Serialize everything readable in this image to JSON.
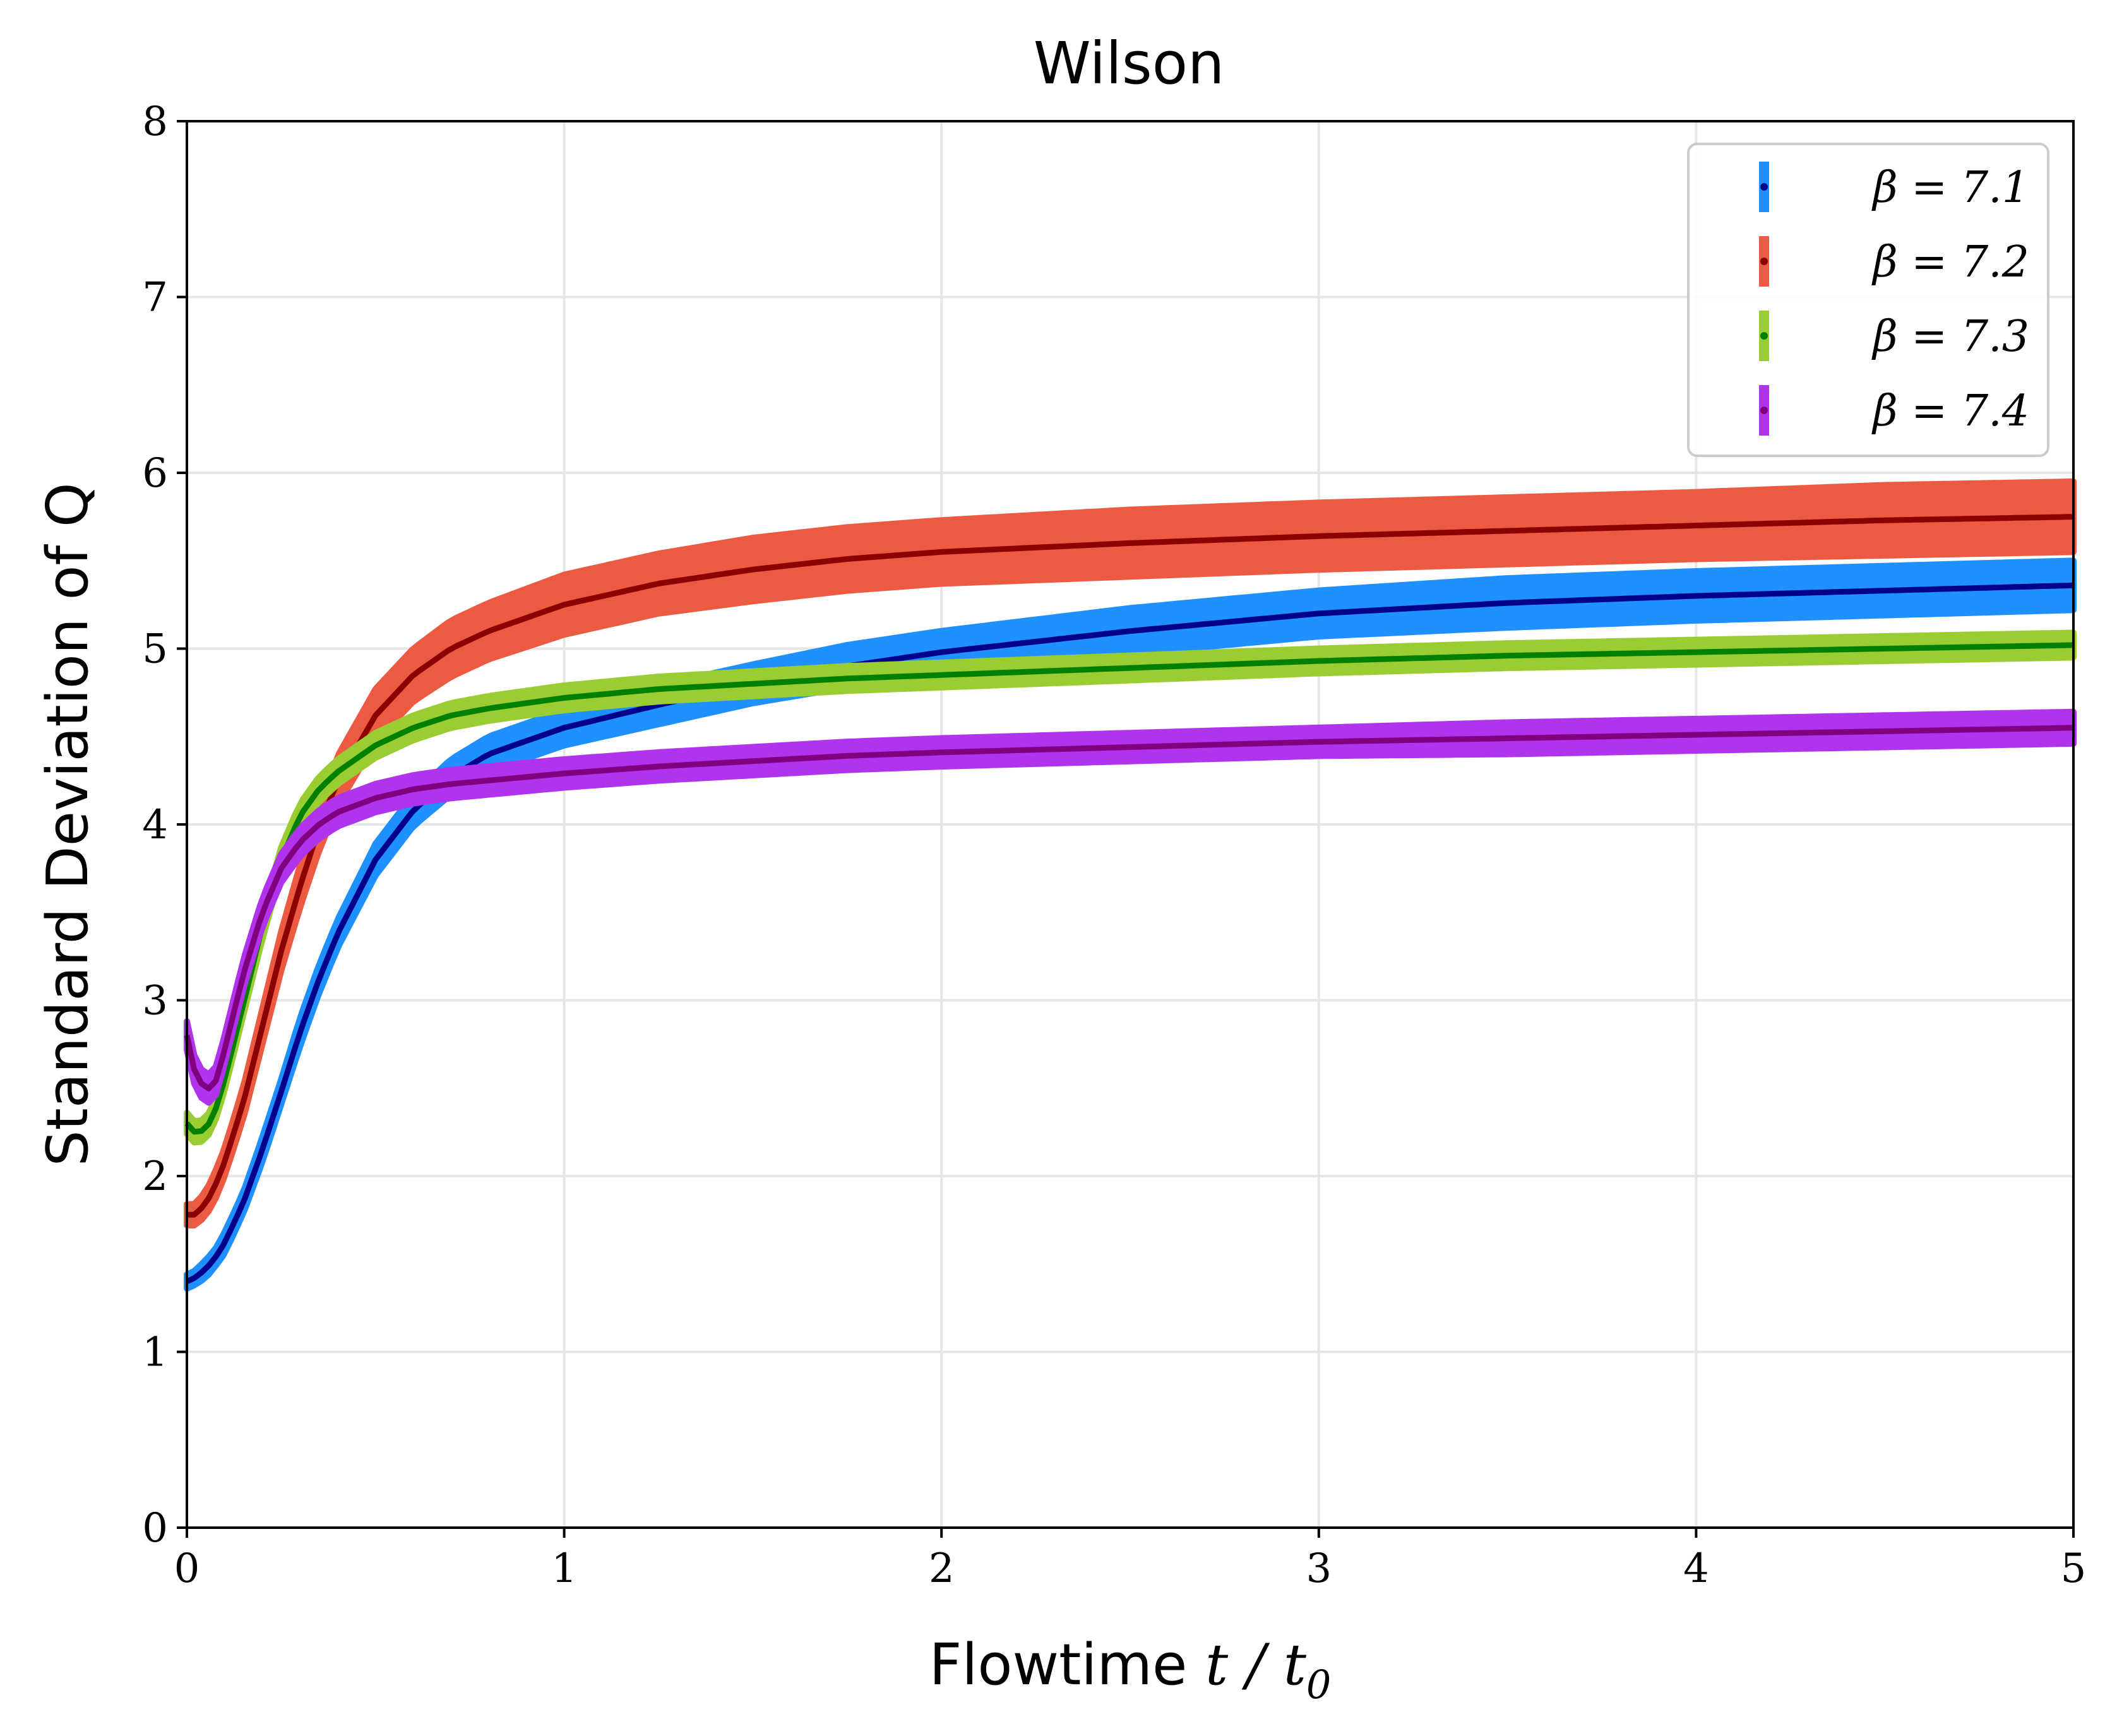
{
  "chart_data": {
    "type": "line",
    "title": "Wilson",
    "xlabel_main": "Flowtime ",
    "xlabel_math": "t / t",
    "xlabel_sub": "0",
    "ylabel": "Standard Deviation of Q",
    "xlim": [
      0,
      5
    ],
    "ylim": [
      0,
      8
    ],
    "xticks": [
      "0",
      "1",
      "2",
      "3",
      "4",
      "5"
    ],
    "yticks": [
      "0",
      "1",
      "2",
      "3",
      "4",
      "5",
      "6",
      "7",
      "8"
    ],
    "grid": true,
    "legend_position": "top-right",
    "x": [
      0,
      0.02,
      0.05,
      0.08,
      0.1,
      0.15,
      0.2,
      0.25,
      0.3,
      0.35,
      0.4,
      0.5,
      0.6,
      0.7,
      0.8,
      1.0,
      1.25,
      1.5,
      1.75,
      2.0,
      2.5,
      3.0,
      3.5,
      4.0,
      4.5,
      5.0
    ],
    "series": [
      {
        "name": "β = 7.1",
        "legend_label": "β = 7.1",
        "band_color": "#1e90ff",
        "line_color": "#00008b",
        "values": [
          1.4,
          1.42,
          1.47,
          1.55,
          1.62,
          1.85,
          2.15,
          2.48,
          2.82,
          3.12,
          3.38,
          3.8,
          4.08,
          4.27,
          4.4,
          4.55,
          4.68,
          4.8,
          4.9,
          4.98,
          5.1,
          5.2,
          5.26,
          5.3,
          5.33,
          5.36
        ],
        "errors": [
          0.04,
          0.04,
          0.05,
          0.05,
          0.06,
          0.06,
          0.07,
          0.07,
          0.08,
          0.08,
          0.08,
          0.09,
          0.09,
          0.1,
          0.1,
          0.1,
          0.11,
          0.11,
          0.12,
          0.12,
          0.13,
          0.13,
          0.14,
          0.14,
          0.14,
          0.14
        ]
      },
      {
        "name": "β = 7.2",
        "legend_label": "β = 7.2",
        "band_color": "#ed5a42",
        "line_color": "#8b0000",
        "values": [
          1.78,
          1.78,
          1.84,
          1.97,
          2.08,
          2.42,
          2.85,
          3.28,
          3.65,
          3.98,
          4.25,
          4.62,
          4.85,
          5.0,
          5.1,
          5.25,
          5.37,
          5.45,
          5.51,
          5.55,
          5.6,
          5.64,
          5.67,
          5.7,
          5.73,
          5.75
        ],
        "errors": [
          0.06,
          0.06,
          0.07,
          0.08,
          0.08,
          0.09,
          0.1,
          0.11,
          0.12,
          0.13,
          0.14,
          0.15,
          0.15,
          0.16,
          0.16,
          0.17,
          0.17,
          0.18,
          0.18,
          0.18,
          0.19,
          0.19,
          0.19,
          0.19,
          0.2,
          0.2
        ]
      },
      {
        "name": "β = 7.3",
        "legend_label": "β = 7.3",
        "band_color": "#9acd32",
        "line_color": "#008000",
        "values": [
          2.3,
          2.25,
          2.26,
          2.4,
          2.55,
          2.98,
          3.42,
          3.8,
          4.05,
          4.2,
          4.3,
          4.45,
          4.55,
          4.62,
          4.66,
          4.72,
          4.77,
          4.8,
          4.83,
          4.85,
          4.89,
          4.93,
          4.96,
          4.98,
          5.0,
          5.02
        ],
        "errors": [
          0.06,
          0.06,
          0.06,
          0.06,
          0.06,
          0.06,
          0.07,
          0.07,
          0.07,
          0.07,
          0.07,
          0.07,
          0.07,
          0.07,
          0.07,
          0.07,
          0.07,
          0.07,
          0.07,
          0.07,
          0.07,
          0.07,
          0.07,
          0.07,
          0.07,
          0.07
        ]
      },
      {
        "name": "β = 7.4",
        "legend_label": "β = 7.4",
        "band_color": "#b033ee",
        "line_color": "#800080",
        "values": [
          2.8,
          2.6,
          2.48,
          2.55,
          2.72,
          3.15,
          3.5,
          3.75,
          3.9,
          4.0,
          4.07,
          4.15,
          4.2,
          4.23,
          4.25,
          4.29,
          4.33,
          4.36,
          4.39,
          4.41,
          4.44,
          4.47,
          4.49,
          4.51,
          4.53,
          4.55
        ],
        "errors": [
          0.08,
          0.08,
          0.08,
          0.08,
          0.08,
          0.08,
          0.08,
          0.08,
          0.08,
          0.08,
          0.08,
          0.08,
          0.08,
          0.08,
          0.08,
          0.08,
          0.08,
          0.08,
          0.08,
          0.08,
          0.08,
          0.08,
          0.09,
          0.09,
          0.09,
          0.09
        ]
      }
    ]
  }
}
